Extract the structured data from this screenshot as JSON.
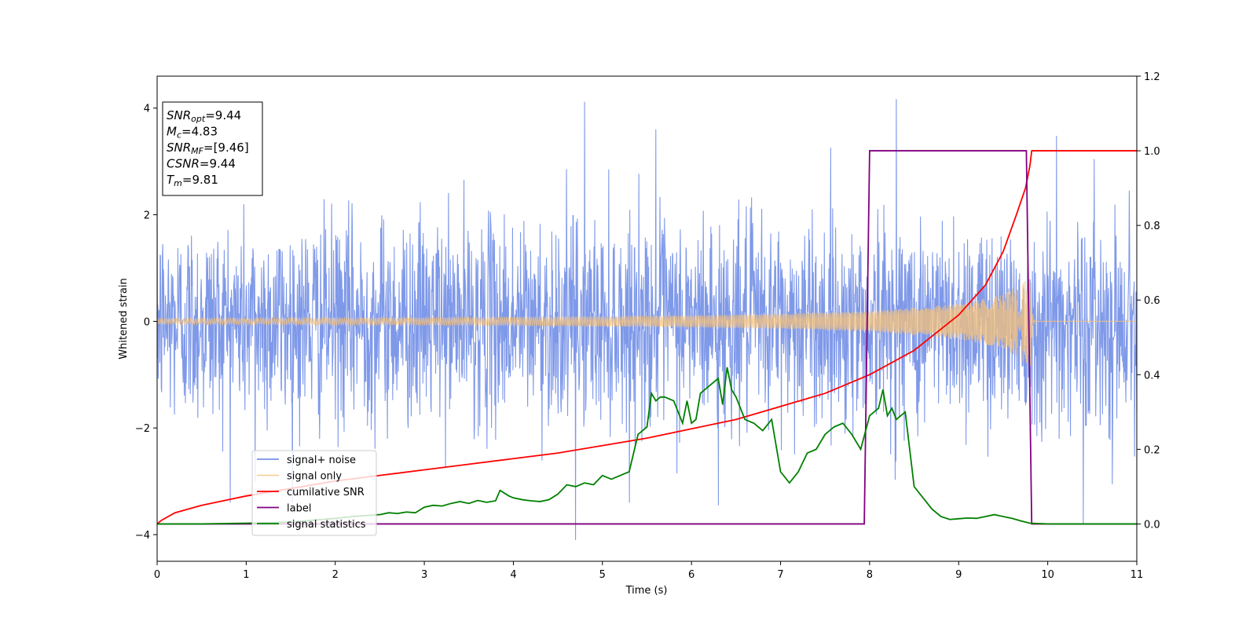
{
  "chart_data": {
    "type": "line",
    "title": "",
    "xlabel": "Time (s)",
    "ylabel": "Whitened strain",
    "xlim": [
      0,
      11
    ],
    "ylim": [
      -4.5,
      4.6
    ],
    "y2lim": [
      -0.1,
      1.2
    ],
    "grid": false,
    "legend_position": "lower-left",
    "xticks": [
      "0",
      "1",
      "2",
      "3",
      "4",
      "5",
      "6",
      "7",
      "8",
      "9",
      "10",
      "11"
    ],
    "yticks": [
      "-4",
      "-2",
      "0",
      "2",
      "4"
    ],
    "y2ticks": [
      "0.0",
      "0.2",
      "0.4",
      "0.6",
      "0.8",
      "1.0",
      "1.2"
    ],
    "info_box": [
      {
        "base": "SNR",
        "sub": "opt",
        "value": "=9.44"
      },
      {
        "base": "M",
        "sub": "c",
        "value": "=4.83"
      },
      {
        "base": "SNR",
        "sub": "MF",
        "value": "=[9.46]"
      },
      {
        "base": "CSNR",
        "sub": "",
        "value": "=9.44"
      },
      {
        "base": "T",
        "sub": "m",
        "value": "=9.81"
      }
    ],
    "series": [
      {
        "name": "signal+ noise",
        "axis": "left",
        "color": "#7893e8",
        "kind": "noise",
        "t_range": [
          0,
          11
        ],
        "amplitude_std": 0.95,
        "peaks": [
          [
            4.8,
            4.12
          ],
          [
            8.3,
            4.17
          ],
          [
            4.7,
            -4.1
          ],
          [
            10.4,
            -3.8
          ],
          [
            5.6,
            3.6
          ],
          [
            10.1,
            3.48
          ],
          [
            6.3,
            -3.45
          ],
          [
            1.1,
            -3.0
          ]
        ]
      },
      {
        "name": "signal only",
        "axis": "left",
        "color": "#f5c27a",
        "kind": "chirp",
        "t_merge": 9.81,
        "envelope": [
          [
            0,
            0.05
          ],
          [
            2,
            0.06
          ],
          [
            4,
            0.08
          ],
          [
            6,
            0.11
          ],
          [
            7,
            0.14
          ],
          [
            8,
            0.19
          ],
          [
            9,
            0.33
          ],
          [
            9.5,
            0.5
          ],
          [
            9.81,
            0.85
          ]
        ]
      },
      {
        "name": "cumilative SNR",
        "axis": "right",
        "color": "#ff0000",
        "x": [
          0,
          0.05,
          0.2,
          0.5,
          1,
          1.5,
          2,
          2.5,
          3,
          3.5,
          4,
          4.5,
          5,
          5.5,
          6,
          6.5,
          7,
          7.5,
          8,
          8.5,
          9,
          9.3,
          9.5,
          9.65,
          9.75,
          9.8,
          9.82,
          11
        ],
        "y": [
          0.0,
          0.01,
          0.03,
          0.05,
          0.075,
          0.095,
          0.115,
          0.13,
          0.145,
          0.16,
          0.175,
          0.19,
          0.21,
          0.23,
          0.255,
          0.28,
          0.315,
          0.35,
          0.4,
          0.465,
          0.56,
          0.64,
          0.73,
          0.83,
          0.9,
          0.96,
          1.0,
          1.0
        ]
      },
      {
        "name": "label",
        "axis": "right",
        "color": "#800080",
        "x": [
          0,
          7.94,
          8.0,
          9.76,
          9.82,
          11
        ],
        "y": [
          0,
          0,
          1,
          1,
          0,
          0
        ]
      },
      {
        "name": "signal statistics",
        "axis": "right",
        "color": "#008000",
        "x": [
          0,
          0.5,
          1.0,
          1.5,
          2.0,
          2.2,
          2.5,
          2.6,
          2.7,
          2.8,
          2.9,
          3.0,
          3.1,
          3.2,
          3.3,
          3.4,
          3.5,
          3.6,
          3.7,
          3.8,
          3.85,
          3.95,
          4.0,
          4.1,
          4.2,
          4.3,
          4.4,
          4.5,
          4.6,
          4.7,
          4.8,
          4.9,
          5.0,
          5.1,
          5.2,
          5.3,
          5.4,
          5.5,
          5.55,
          5.6,
          5.65,
          5.7,
          5.8,
          5.9,
          5.95,
          6.0,
          6.05,
          6.1,
          6.2,
          6.3,
          6.35,
          6.4,
          6.45,
          6.5,
          6.6,
          6.7,
          6.8,
          6.9,
          7.0,
          7.1,
          7.2,
          7.3,
          7.4,
          7.5,
          7.6,
          7.7,
          7.8,
          7.9,
          8.0,
          8.1,
          8.15,
          8.2,
          8.25,
          8.3,
          8.4,
          8.5,
          8.6,
          8.7,
          8.8,
          8.9,
          9.0,
          9.1,
          9.2,
          9.3,
          9.4,
          9.5,
          9.6,
          9.7,
          9.8,
          10.0,
          11.0
        ],
        "y": [
          0.0,
          0.0,
          0.002,
          0.005,
          0.015,
          0.02,
          0.025,
          0.03,
          0.028,
          0.032,
          0.03,
          0.045,
          0.05,
          0.048,
          0.055,
          0.06,
          0.055,
          0.063,
          0.058,
          0.062,
          0.09,
          0.075,
          0.07,
          0.065,
          0.062,
          0.06,
          0.065,
          0.08,
          0.105,
          0.1,
          0.11,
          0.105,
          0.13,
          0.12,
          0.13,
          0.14,
          0.24,
          0.26,
          0.35,
          0.33,
          0.34,
          0.34,
          0.33,
          0.27,
          0.33,
          0.27,
          0.28,
          0.35,
          0.37,
          0.39,
          0.32,
          0.42,
          0.36,
          0.34,
          0.28,
          0.27,
          0.25,
          0.28,
          0.14,
          0.11,
          0.14,
          0.19,
          0.2,
          0.24,
          0.26,
          0.27,
          0.24,
          0.2,
          0.29,
          0.31,
          0.36,
          0.29,
          0.31,
          0.28,
          0.3,
          0.1,
          0.07,
          0.04,
          0.02,
          0.012,
          0.014,
          0.016,
          0.015,
          0.02,
          0.025,
          0.02,
          0.015,
          0.008,
          0.002,
          0.0,
          0.0
        ]
      }
    ]
  }
}
